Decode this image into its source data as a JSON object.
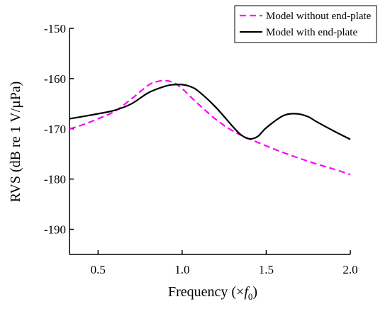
{
  "chart_data": {
    "type": "line",
    "xlabel": "Frequency (×f0)",
    "xlabel_parts": {
      "prefix": "Frequency (×",
      "var": "f",
      "sub": "0",
      "suffix": ")"
    },
    "ylabel": "RVS (dB re 1 V/µPa)",
    "xlim": [
      0.33,
      2.0
    ],
    "ylim": [
      -195,
      -150
    ],
    "xticks": [
      0.5,
      1.0,
      1.5,
      2.0
    ],
    "xtick_labels": [
      "0.5",
      "1.0",
      "1.5",
      "2.0"
    ],
    "yticks": [
      -150,
      -160,
      -170,
      -180,
      -190
    ],
    "ytick_labels": [
      "-150",
      "-160",
      "-170",
      "-180",
      "-190"
    ],
    "grid": false,
    "legend_position": "top-right",
    "series": [
      {
        "name": "Model without end-plate",
        "color": "#ff00ff",
        "dash": "dashed",
        "x": [
          0.33,
          0.4,
          0.5,
          0.6,
          0.7,
          0.8,
          0.85,
          0.9,
          0.95,
          1.0,
          1.05,
          1.1,
          1.2,
          1.3,
          1.4,
          1.5,
          1.6,
          1.7,
          1.8,
          1.9,
          2.0
        ],
        "y": [
          -170.0,
          -169.3,
          -168.0,
          -166.5,
          -164.0,
          -161.3,
          -160.6,
          -160.4,
          -160.8,
          -162.0,
          -163.6,
          -165.2,
          -168.1,
          -170.4,
          -172.0,
          -173.4,
          -174.7,
          -175.9,
          -177.0,
          -178.0,
          -179.1
        ]
      },
      {
        "name": "Model with end-plate",
        "color": "#000000",
        "dash": "solid",
        "x": [
          0.33,
          0.4,
          0.5,
          0.6,
          0.7,
          0.8,
          0.9,
          0.95,
          1.0,
          1.05,
          1.1,
          1.2,
          1.3,
          1.35,
          1.4,
          1.45,
          1.5,
          1.6,
          1.68,
          1.75,
          1.8,
          1.9,
          2.0
        ],
        "y": [
          -168.0,
          -167.6,
          -167.0,
          -166.3,
          -165.0,
          -162.8,
          -161.5,
          -161.2,
          -161.2,
          -161.6,
          -162.6,
          -165.7,
          -169.5,
          -171.2,
          -172.0,
          -171.5,
          -169.8,
          -167.4,
          -167.0,
          -167.6,
          -168.6,
          -170.4,
          -172.1
        ]
      }
    ]
  }
}
